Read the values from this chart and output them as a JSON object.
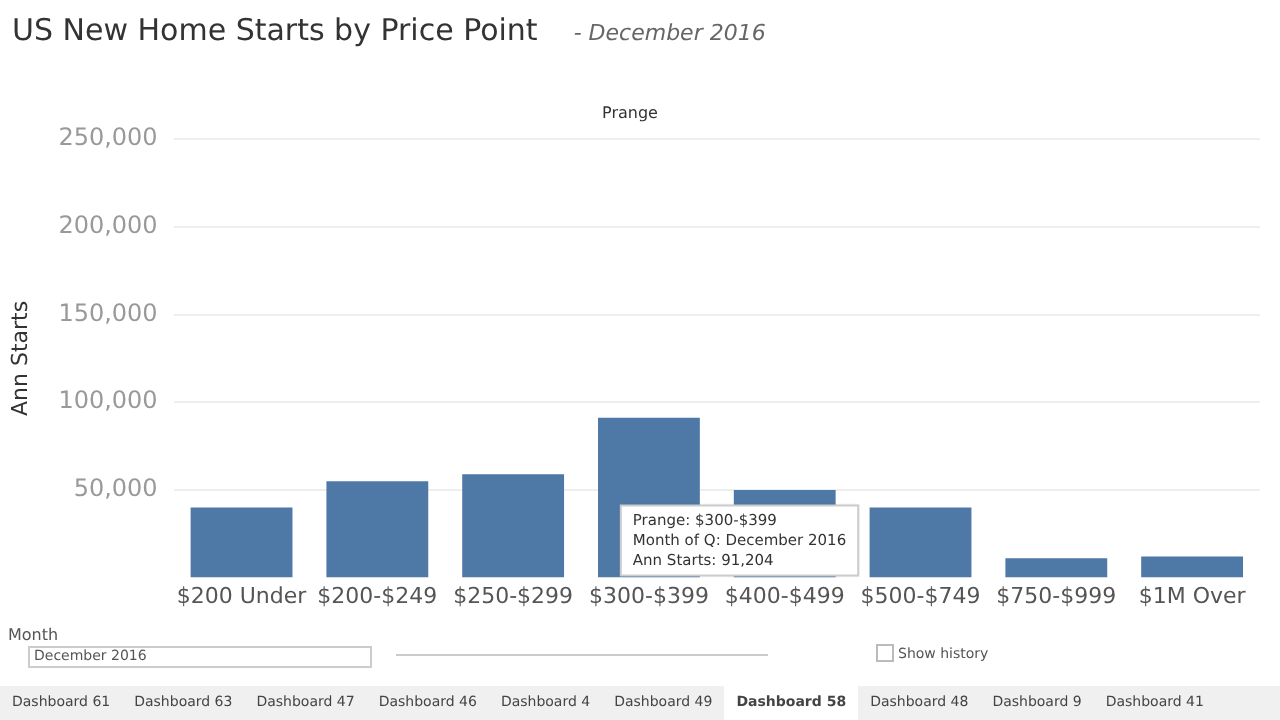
{
  "chart_data": {
    "type": "bar",
    "title": "US New Home Starts by Price Point",
    "subtitle": "- December 2016",
    "xlabel": "Prange",
    "ylabel": "Ann Starts",
    "categories": [
      "$200 Under",
      "$200-$249",
      "$250-$299",
      "$300-$399",
      "$400-$499",
      "$500-$749",
      "$750-$999",
      "$1M Over"
    ],
    "values": [
      40000,
      55000,
      59000,
      91204,
      50000,
      40000,
      11000,
      12000
    ],
    "color": "#4e79a7",
    "ylim": [
      0,
      250000
    ],
    "yticks": [
      {
        "value": 50000,
        "label": "50,000"
      },
      {
        "value": 100000,
        "label": "100,000"
      },
      {
        "value": 150000,
        "label": "150,000"
      },
      {
        "value": 200000,
        "label": "200,000"
      },
      {
        "value": 250000,
        "label": "250,000"
      }
    ],
    "grid": "y",
    "legend": false,
    "annotations": [
      "Prange: $300-$399\nMonth of Q: December 2016\nAnn Starts: 91,204",
      "Month",
      "December 2016",
      "Show history",
      "Dashboard 61",
      "Dashboard 63",
      "Dashboard 47",
      "Dashboard 46",
      "Dashboard 4",
      "Dashboard 49",
      "Dashboard 58",
      "Dashboard 48",
      "Dashboard 9",
      "Dashboard 41"
    ]
  }
}
